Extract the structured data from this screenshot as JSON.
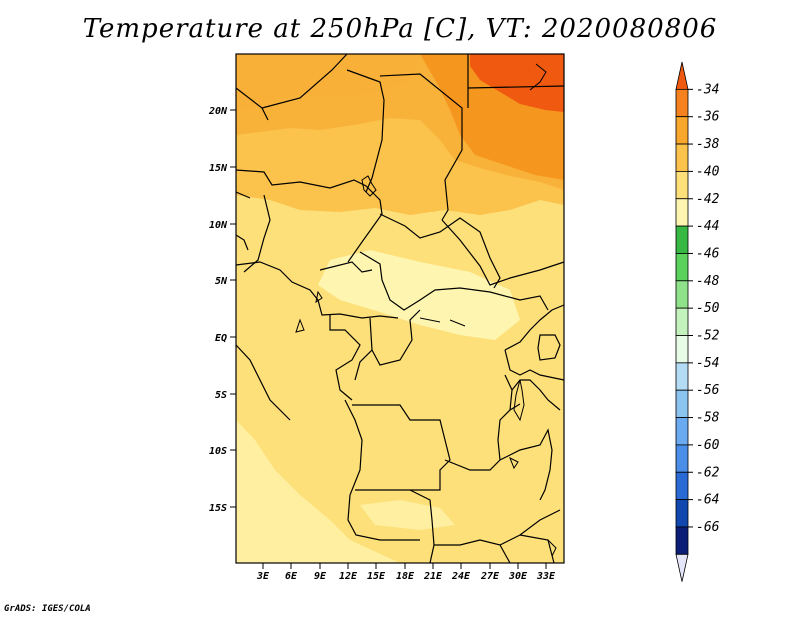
{
  "title": "Temperature at 250hPa [C], VT: 2020080806",
  "credit": "GrADS: IGES/COLA",
  "lat_labels": [
    "20N",
    "15N",
    "10N",
    "5N",
    "EQ",
    "5S",
    "10S",
    "15S"
  ],
  "lon_labels": [
    "3E",
    "6E",
    "9E",
    "12E",
    "15E",
    "18E",
    "21E",
    "24E",
    "27E",
    "30E",
    "33E"
  ],
  "colorbar": {
    "labels": [
      "-34",
      "-36",
      "-38",
      "-40",
      "-42",
      "-44",
      "-46",
      "-48",
      "-50",
      "-52",
      "-54",
      "-56",
      "-58",
      "-60",
      "-62",
      "-64",
      "-66"
    ],
    "colors": [
      "#f05a10",
      "#f5821e",
      "#f8a62c",
      "#fbc24c",
      "#fde07a",
      "#fef6b0",
      "#36b843",
      "#5bd25b",
      "#8fe28a",
      "#c4f2bc",
      "#e8fbe6",
      "#b4dcf5",
      "#8cc4f0",
      "#6aaaf0",
      "#4a8ee8",
      "#2a6ad4",
      "#1048b0",
      "#0a1e78",
      "#e6e6fa"
    ]
  },
  "chart_data": {
    "type": "heatmap",
    "title": "Temperature at 250hPa [C], VT: 2020080806",
    "variable": "Temperature",
    "level": "250hPa",
    "units": "C",
    "valid_time": "2020080806",
    "lat_ticks": [
      "20N",
      "15N",
      "10N",
      "5N",
      "EQ",
      "5S",
      "10S",
      "15S"
    ],
    "lon_ticks": [
      "3E",
      "6E",
      "9E",
      "12E",
      "15E",
      "18E",
      "21E",
      "24E",
      "27E",
      "30E",
      "33E"
    ],
    "levels": [
      -34,
      -36,
      -38,
      -40,
      -42,
      -44,
      -46,
      -48,
      -50,
      -52,
      -54,
      -56,
      -58,
      -60,
      -62,
      -64,
      -66
    ],
    "regions": [
      {
        "area": "far north-east (Libya/Egypt border)",
        "value_range": [
          -36,
          -34
        ]
      },
      {
        "area": "north-east (Sudan/Chad north)",
        "value_range": [
          -38,
          -36
        ]
      },
      {
        "area": "northern band ~12N-24N",
        "value_range": [
          -40,
          -38
        ]
      },
      {
        "area": "central band and most of south",
        "value_range": [
          -42,
          -40
        ]
      },
      {
        "area": "Cameroon / CAR / northern Congo, ~0-8N",
        "value_range": [
          -44,
          -42
        ]
      }
    ]
  }
}
